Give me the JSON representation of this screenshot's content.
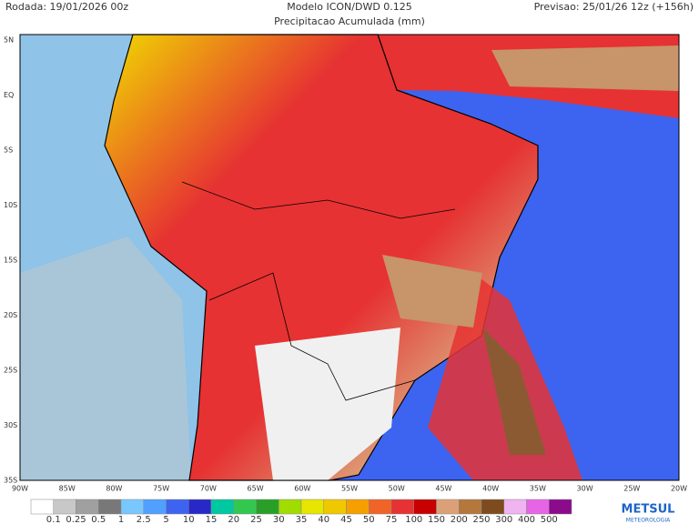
{
  "header": {
    "run": "Rodada: 19/01/2026 00z",
    "model": "Modelo ICON/DWD 0.125",
    "forecast": "Previsao: 25/01/26 12z (+156h)",
    "subtitle": "Precipitacao Acumulada (mm)"
  },
  "map": {
    "lat_labels": [
      "5N",
      "EQ",
      "5S",
      "10S",
      "15S",
      "20S",
      "25S",
      "30S",
      "35S"
    ],
    "lon_labels": [
      "90W",
      "85W",
      "80W",
      "75W",
      "70W",
      "65W",
      "60W",
      "55W",
      "50W",
      "45W",
      "40W",
      "35W",
      "30W",
      "25W",
      "20W"
    ]
  },
  "legend": {
    "labels": [
      0.1,
      0.25,
      0.5,
      1,
      2.5,
      5,
      10,
      15,
      20,
      25,
      30,
      35,
      40,
      45,
      50,
      75,
      100,
      150,
      200,
      250,
      300,
      400,
      500
    ],
    "colors": [
      "#ffffff",
      "#c8c8c8",
      "#a0a0a0",
      "#787878",
      "#78c8ff",
      "#50a0ff",
      "#3c64f0",
      "#2828c8",
      "#00c8a0",
      "#32c850",
      "#28a028",
      "#a0dc00",
      "#e6e600",
      "#f0c800",
      "#f5a000",
      "#f06428",
      "#e63232",
      "#c80000",
      "#dca078",
      "#b4783c",
      "#7d4b1e",
      "#f0b4f0",
      "#e664e6",
      "#8c0a8c"
    ]
  },
  "logo": {
    "name": "METSUL",
    "tagline": "METEOROLOGIA"
  }
}
